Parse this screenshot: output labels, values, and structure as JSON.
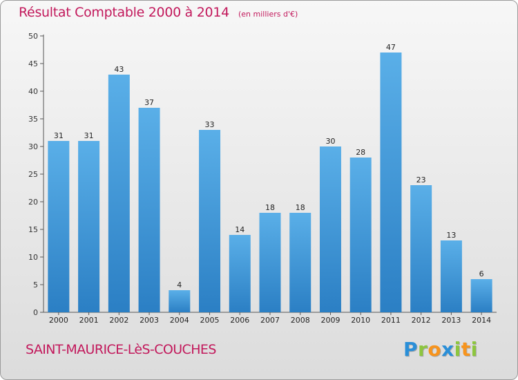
{
  "chart_data": {
    "type": "bar",
    "title": "Résultat Comptable 2000 à 2014",
    "unit_note": "(en milliers d'€)",
    "categories": [
      "2000",
      "2001",
      "2002",
      "2003",
      "2004",
      "2005",
      "2006",
      "2007",
      "2008",
      "2009",
      "2010",
      "2011",
      "2012",
      "2013",
      "2014"
    ],
    "values": [
      31,
      31,
      43,
      37,
      4,
      33,
      14,
      18,
      18,
      30,
      28,
      47,
      23,
      13,
      6
    ],
    "yticks": [
      0,
      5,
      10,
      15,
      20,
      25,
      30,
      35,
      40,
      45,
      50
    ],
    "ylim": [
      0,
      50
    ],
    "xlabel": "",
    "ylabel": "",
    "grid": false,
    "bar_color_top": "#5aafe8",
    "bar_color_bottom": "#2b7fc4"
  },
  "footer": {
    "commune": "SAINT-MAURICE-LèS-COUCHES",
    "logo_letters": [
      {
        "ch": "P",
        "color": "#2a8fd8"
      },
      {
        "ch": "r",
        "color": "#8dc63f"
      },
      {
        "ch": "o",
        "color": "#f7941d"
      },
      {
        "ch": "x",
        "color": "#2a8fd8"
      },
      {
        "ch": "i",
        "color": "#8dc63f"
      },
      {
        "ch": "t",
        "color": "#f7941d"
      },
      {
        "ch": "i",
        "color": "#8dc63f"
      }
    ]
  }
}
